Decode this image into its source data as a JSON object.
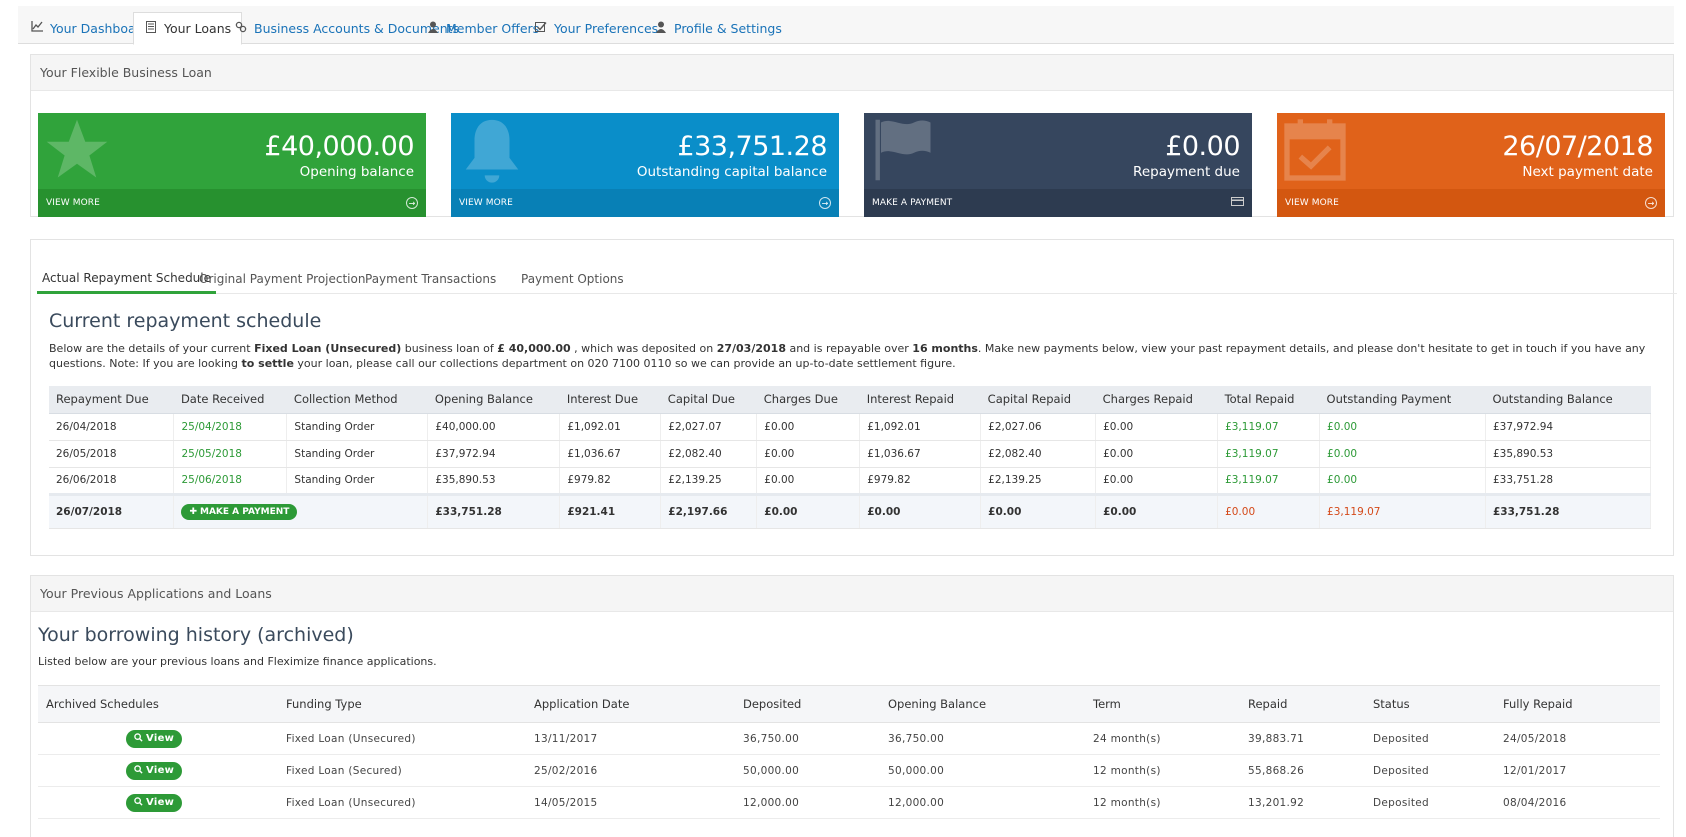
{
  "nav": {
    "tabs": [
      {
        "label": "Your Dashboard",
        "icon": "chart-icon"
      },
      {
        "label": "Your Loans",
        "icon": "document-icon"
      },
      {
        "label": "Business Accounts & Documents",
        "icon": "link-icon"
      },
      {
        "label": "Member Offers",
        "icon": "user-icon"
      },
      {
        "label": "Your Preferences",
        "icon": "checkbox-icon"
      },
      {
        "label": "Profile & Settings",
        "icon": "user-icon"
      }
    ],
    "active": "Your Loans"
  },
  "loan_panel": {
    "title": "Your Flexible Business Loan",
    "cards": [
      {
        "value": "£40,000.00",
        "label": "Opening balance",
        "footer": "VIEW MORE",
        "icon": "star-icon",
        "color": "#30a33b"
      },
      {
        "value": "£33,751.28",
        "label": "Outstanding capital balance",
        "footer": "VIEW MORE",
        "icon": "bell-icon",
        "color": "#0a8ec9"
      },
      {
        "value": "£0.00",
        "label": "Repayment due",
        "footer": "MAKE A PAYMENT",
        "icon": "flag-icon",
        "color": "#36465e"
      },
      {
        "value": "26/07/2018",
        "label": "Next payment date",
        "footer": "VIEW MORE",
        "icon": "calendar-check-icon",
        "color": "#e0621a"
      }
    ]
  },
  "schedule": {
    "tabs": [
      "Actual Repayment Schedule",
      "Original Payment Projection",
      "Payment Transactions",
      "Payment Options"
    ],
    "active_tab": "Actual Repayment Schedule",
    "heading": "Current repayment schedule",
    "desc": {
      "t1": "Below are the details of your current ",
      "b1": "Fixed Loan (Unsecured)",
      "t2": " business loan of ",
      "b2": "£ 40,000.00",
      "t3": " , which was deposited on ",
      "b3": "27/03/2018",
      "t4": " and is repayable over ",
      "b4": "16 months",
      "t5": ". Make new payments below, view your past repayment details, and please don't hesitate to get in touch if you have any questions. Note: If you are looking ",
      "b5": "to settle",
      "t6": " your loan, please call our collections department on 020 7100 0110 so we can provide an up-to-date settlement figure."
    },
    "columns": [
      "Repayment Due",
      "Date Received",
      "Collection Method",
      "Opening Balance",
      "Interest Due",
      "Capital Due",
      "Charges Due",
      "Interest Repaid",
      "Capital Repaid",
      "Charges Repaid",
      "Total Repaid",
      "Outstanding Payment",
      "Outstanding Balance"
    ],
    "rows": [
      [
        "26/04/2018",
        "25/04/2018",
        "Standing Order",
        "£40,000.00",
        "£1,092.01",
        "£2,027.07",
        "£0.00",
        "£1,092.01",
        "£2,027.06",
        "£0.00",
        "£3,119.07",
        "£0.00",
        "£37,972.94"
      ],
      [
        "26/05/2018",
        "25/05/2018",
        "Standing Order",
        "£37,972.94",
        "£1,036.67",
        "£2,082.40",
        "£0.00",
        "£1,036.67",
        "£2,082.40",
        "£0.00",
        "£3,119.07",
        "£0.00",
        "£35,890.53"
      ],
      [
        "26/06/2018",
        "25/06/2018",
        "Standing Order",
        "£35,890.53",
        "£979.82",
        "£2,139.25",
        "£0.00",
        "£979.82",
        "£2,139.25",
        "£0.00",
        "£3,119.07",
        "£0.00",
        "£33,751.28"
      ]
    ],
    "last_row": {
      "due": "26/07/2018",
      "button": "MAKE A PAYMENT",
      "cells": [
        "£33,751.28",
        "£921.41",
        "£2,197.66",
        "£0.00",
        "£0.00",
        "£0.00",
        "£0.00",
        "£0.00",
        "£3,119.07",
        "£33,751.28"
      ]
    }
  },
  "history": {
    "panel_title": "Your Previous Applications and Loans",
    "heading": "Your borrowing history (archived)",
    "desc": "Listed below are your previous loans and Fleximize finance applications.",
    "columns": [
      "Archived Schedules",
      "Funding Type",
      "Application Date",
      "Deposited",
      "Opening Balance",
      "Term",
      "Repaid",
      "Status",
      "Fully Repaid"
    ],
    "view_label": "View",
    "rows": [
      [
        "Fixed Loan (Unsecured)",
        "13/11/2017",
        "36,750.00",
        "36,750.00",
        "24 month(s)",
        "39,883.71",
        "Deposited",
        "24/05/2018"
      ],
      [
        "Fixed Loan (Secured)",
        "25/02/2016",
        "50,000.00",
        "50,000.00",
        "12 month(s)",
        "55,868.26",
        "Deposited",
        "12/01/2017"
      ],
      [
        "Fixed Loan (Unsecured)",
        "14/05/2015",
        "12,000.00",
        "12,000.00",
        "12 month(s)",
        "13,201.92",
        "Deposited",
        "08/04/2016"
      ]
    ]
  }
}
